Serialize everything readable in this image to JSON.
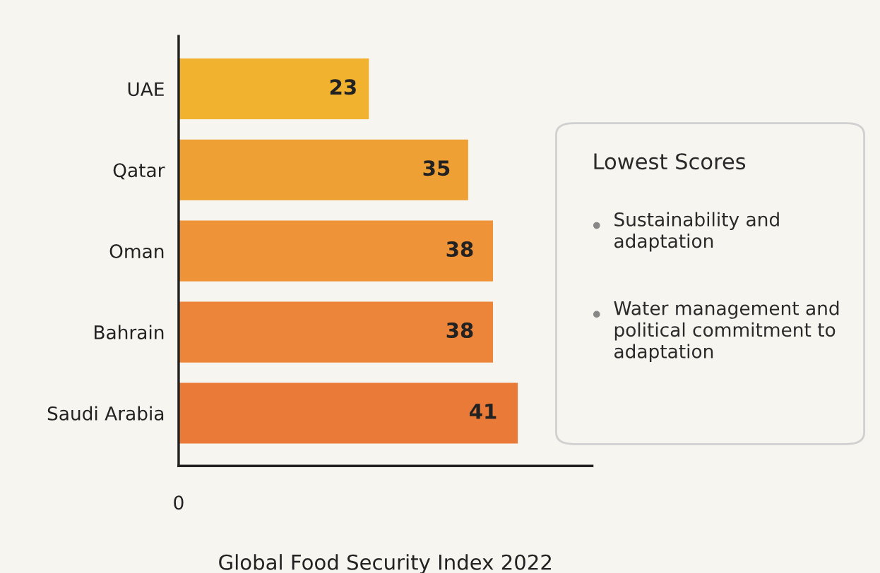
{
  "chart_data": {
    "type": "bar",
    "orientation": "horizontal",
    "xlabel": "Global Food Security Index 2022",
    "xlim": [
      0,
      50
    ],
    "categories": [
      "UAE",
      "Qatar",
      "Oman",
      "Bahrain",
      "Saudi Arabia"
    ],
    "values": [
      23,
      35,
      38,
      38,
      41
    ],
    "data_labels": true,
    "colors": [
      "#f0b22f",
      "#efa035",
      "#ee9338",
      "#ec8539",
      "#ea7a37"
    ],
    "grid": false,
    "legend": false,
    "annotations": [
      "0",
      "Lowest Scores",
      "Sustainability and adaptation",
      "Water management and political commitment to adaptation"
    ]
  }
}
